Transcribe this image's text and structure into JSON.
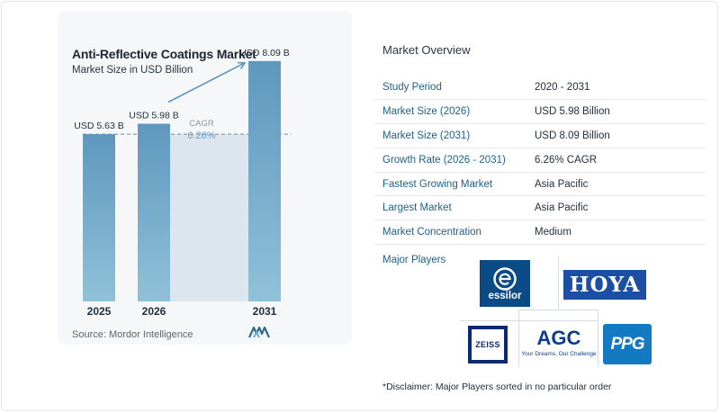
{
  "chart_data": {
    "type": "bar",
    "title": "Anti-Reflective Coatings Market",
    "subtitle": "Market Size in USD Billion",
    "categories": [
      "2025",
      "2026",
      "2031"
    ],
    "values": [
      5.63,
      5.98,
      8.09
    ],
    "value_labels": [
      "USD 5.63 B",
      "USD 5.98 B",
      "USD 8.09 B"
    ],
    "annotation": {
      "label": "CAGR",
      "value": "6.26%"
    },
    "reference_line": 5.63,
    "ylim": [
      0,
      8.6
    ],
    "colors": {
      "bar": "#5f97be",
      "bar_light": "#8fc1d8",
      "band": "#dde6ee",
      "dash": "#6c8aa5",
      "arrow": "#5f97be",
      "cagr": "#6d9cbf"
    }
  },
  "source": {
    "label": "Source:",
    "name": "Mordor Intelligence"
  },
  "overview": {
    "title": "Market Overview",
    "rows": [
      {
        "key": "Study Period",
        "value": "2020 - 2031"
      },
      {
        "key": "Market Size (2026)",
        "value": "USD 5.98 Billion"
      },
      {
        "key": "Market Size (2031)",
        "value": "USD 8.09 Billion"
      },
      {
        "key": "Growth Rate (2026 - 2031)",
        "value": "6.26% CAGR"
      },
      {
        "key": "Fastest Growing Market",
        "value": "Asia Pacific"
      },
      {
        "key": "Largest Market",
        "value": "Asia Pacific"
      },
      {
        "key": "Market Concentration",
        "value": "Medium"
      }
    ]
  },
  "players": {
    "title": "Major Players",
    "essilor": "essilor",
    "hoya": "HOYA",
    "zeiss": "ZEISS",
    "agc": "AGC",
    "agc_tagline": "Your Dreams, Our Challenge",
    "ppg": "PPG"
  },
  "disclaimer": "*Disclaimer: Major Players sorted in no particular order"
}
